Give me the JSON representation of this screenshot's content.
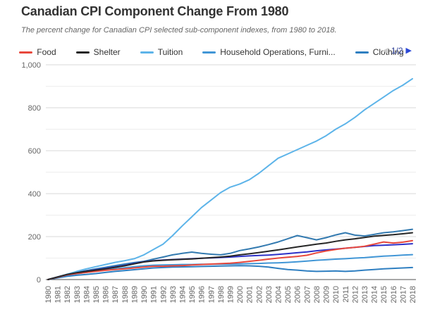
{
  "header": {
    "title": "Canadian CPI Component Change From 1980",
    "subtitle": "The percent change for Canadian CPI selected sub-component indexes, from 1980 to 2018."
  },
  "legend": {
    "items": [
      {
        "label": "Food",
        "color": "#e8483c"
      },
      {
        "label": "Shelter",
        "color": "#262626"
      },
      {
        "label": "Tuition",
        "color": "#5db4e9"
      },
      {
        "label": "Household Operations, Furni...",
        "color": "#4196d6"
      },
      {
        "label": "Clothing",
        "color": "#2f7fc1"
      }
    ],
    "pagination": {
      "prev_icon": "◀",
      "page_text": "1/2",
      "next_icon": "▶"
    }
  },
  "chart_data": {
    "type": "line",
    "title": "Canadian CPI Component Change From 1980",
    "subtitle": "The percent change for Canadian CPI selected sub-component indexes, from 1980 to 2018.",
    "xlabel": "",
    "ylabel": "",
    "ylim": [
      0,
      1000
    ],
    "yticks": [
      0,
      200,
      400,
      600,
      800,
      1000
    ],
    "ytick_labels": [
      "0",
      "200",
      "400",
      "600",
      "800",
      "1,000"
    ],
    "grid": "horizontal gridlines every 100 units, minor lines lighter; no vertical gridlines",
    "legend_position": "top, paginated (page 1 of 2; two plotted series are unlabeled on this page)",
    "x": [
      1980,
      1981,
      1982,
      1983,
      1984,
      1985,
      1986,
      1987,
      1988,
      1989,
      1990,
      1991,
      1992,
      1993,
      1994,
      1995,
      1996,
      1997,
      1998,
      1999,
      2000,
      2001,
      2002,
      2003,
      2004,
      2005,
      2006,
      2007,
      2008,
      2009,
      2010,
      2011,
      2012,
      2013,
      2014,
      2015,
      2016,
      2017,
      2018
    ],
    "series": [
      {
        "name": "Food",
        "color": "#e8483c",
        "values": [
          0,
          11,
          22,
          28,
          33,
          38,
          43,
          47,
          50,
          54,
          58,
          62,
          62,
          64,
          65,
          68,
          70,
          72,
          74,
          76,
          80,
          85,
          90,
          95,
          100,
          104,
          108,
          113,
          124,
          133,
          140,
          146,
          150,
          155,
          165,
          175,
          170,
          174,
          181
        ]
      },
      {
        "name": "Shelter",
        "color": "#262626",
        "values": [
          0,
          12,
          24,
          32,
          38,
          44,
          50,
          57,
          64,
          73,
          82,
          87,
          90,
          92,
          94,
          96,
          99,
          102,
          105,
          109,
          115,
          120,
          126,
          132,
          138,
          145,
          152,
          158,
          165,
          170,
          178,
          185,
          190,
          196,
          202,
          206,
          209,
          213,
          218
        ]
      },
      {
        "name": "Tuition",
        "color": "#5db4e9",
        "values": [
          0,
          12,
          25,
          38,
          50,
          60,
          70,
          80,
          88,
          97,
          115,
          140,
          165,
          205,
          250,
          292,
          335,
          370,
          405,
          430,
          445,
          465,
          495,
          530,
          565,
          585,
          605,
          625,
          645,
          670,
          700,
          725,
          755,
          790,
          820,
          850,
          880,
          905,
          935
        ]
      },
      {
        "name": "Household Operations, Furni...",
        "color": "#4196d6",
        "values": [
          0,
          10,
          20,
          27,
          33,
          40,
          45,
          50,
          55,
          60,
          64,
          67,
          68,
          69,
          70,
          70,
          71,
          71,
          72,
          72,
          73,
          74,
          75,
          77,
          78,
          80,
          83,
          86,
          90,
          92,
          95,
          97,
          100,
          102,
          106,
          109,
          111,
          114,
          116
        ]
      },
      {
        "name": "Clothing",
        "color": "#2f7fc1",
        "values": [
          0,
          8,
          15,
          20,
          24,
          28,
          33,
          38,
          42,
          46,
          50,
          54,
          56,
          58,
          59,
          60,
          61,
          62,
          63,
          64,
          65,
          64,
          62,
          58,
          52,
          47,
          44,
          40,
          38,
          39,
          40,
          38,
          40,
          44,
          47,
          50,
          52,
          54,
          56
        ]
      },
      {
        "name": "",
        "note": "unlabeled series (legend page 2)",
        "color": "#337ab0",
        "values": [
          0,
          12,
          24,
          33,
          42,
          50,
          57,
          65,
          72,
          79,
          85,
          95,
          105,
          115,
          122,
          128,
          122,
          118,
          115,
          122,
          135,
          143,
          152,
          163,
          175,
          190,
          205,
          195,
          185,
          195,
          208,
          218,
          207,
          203,
          210,
          218,
          222,
          228,
          234
        ]
      },
      {
        "name": "",
        "note": "unlabeled series (legend page 2)",
        "color": "#2d31c8",
        "values": [
          0,
          12,
          24,
          32,
          39,
          46,
          52,
          59,
          66,
          75,
          83,
          88,
          91,
          93,
          95,
          97,
          99,
          101,
          103,
          105,
          108,
          110,
          112,
          114,
          117,
          121,
          125,
          129,
          134,
          138,
          142,
          146,
          150,
          154,
          158,
          160,
          162,
          164,
          167
        ]
      }
    ]
  }
}
